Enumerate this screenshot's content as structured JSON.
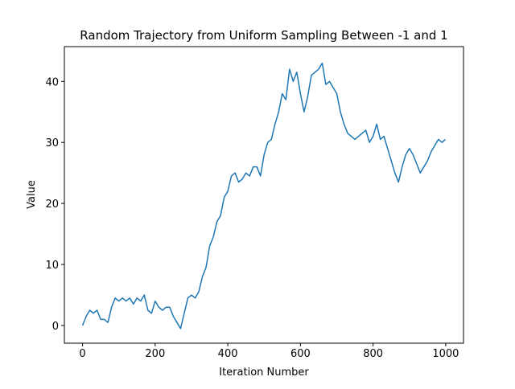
{
  "chart_data": {
    "type": "line",
    "title": "Random Trajectory from Uniform Sampling Between -1 and 1",
    "x_label": "Iteration Number",
    "y_label": "Value",
    "x": [
      0,
      10,
      20,
      30,
      40,
      50,
      60,
      70,
      80,
      90,
      100,
      110,
      120,
      130,
      140,
      150,
      160,
      170,
      180,
      190,
      200,
      210,
      220,
      230,
      240,
      250,
      260,
      270,
      280,
      290,
      300,
      310,
      320,
      330,
      340,
      350,
      360,
      370,
      380,
      390,
      400,
      410,
      420,
      430,
      440,
      450,
      460,
      470,
      480,
      490,
      500,
      510,
      520,
      530,
      540,
      550,
      560,
      570,
      580,
      590,
      600,
      610,
      620,
      630,
      640,
      650,
      660,
      670,
      680,
      690,
      700,
      710,
      720,
      730,
      740,
      750,
      760,
      770,
      780,
      790,
      800,
      810,
      820,
      830,
      840,
      850,
      860,
      870,
      880,
      890,
      900,
      910,
      920,
      930,
      940,
      950,
      960,
      970,
      980,
      990,
      999
    ],
    "values": [
      0,
      1.5,
      2.5,
      2,
      2.5,
      1,
      1,
      0.5,
      3,
      4.5,
      4,
      4.5,
      4,
      4.5,
      3.5,
      4.5,
      4,
      5,
      2.5,
      2,
      4,
      3,
      2.5,
      3,
      3,
      1.5,
      0.5,
      -0.5,
      2,
      4.5,
      5,
      4.5,
      5.5,
      8,
      9.5,
      13,
      14.5,
      17,
      18,
      21,
      22,
      24.5,
      25,
      23.5,
      24,
      25,
      24.5,
      26,
      26,
      24.5,
      28,
      30,
      30.5,
      33,
      35,
      38,
      37,
      42,
      40,
      41.5,
      38,
      35,
      37.5,
      41,
      41.5,
      42,
      43,
      39.5,
      40,
      39,
      38,
      35,
      33,
      31.5,
      31,
      30.5,
      31,
      31.5,
      32,
      30,
      31,
      33,
      30.5,
      31,
      29,
      27,
      25,
      23.5,
      26,
      28,
      29,
      28,
      26.5,
      25,
      26,
      27,
      28.5,
      29.5,
      30.5,
      30,
      30.5
    ],
    "color": "#1f77b4",
    "xlim": [
      -50,
      1049
    ],
    "ylim": [
      -2.9,
      45.7
    ],
    "xticks": [
      0,
      200,
      400,
      600,
      800,
      1000
    ],
    "yticks": [
      0,
      10,
      20,
      30,
      40
    ]
  }
}
